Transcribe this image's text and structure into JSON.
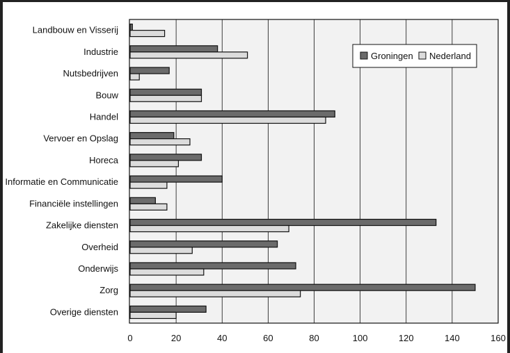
{
  "chart_data": {
    "type": "bar",
    "orientation": "horizontal",
    "categories": [
      "Landbouw en Visserij",
      "Industrie",
      "Nutsbedrijven",
      "Bouw",
      "Handel",
      "Vervoer en Opslag",
      "Horeca",
      "Informatie en Communicatie",
      "Financiële instellingen",
      "Zakelijke diensten",
      "Overheid",
      "Onderwijs",
      "Zorg",
      "Overige diensten"
    ],
    "series": [
      {
        "name": "Groningen",
        "color": "#6b6b6b",
        "values": [
          1,
          38,
          17,
          31,
          89,
          19,
          31,
          40,
          11,
          133,
          64,
          72,
          150,
          33
        ]
      },
      {
        "name": "Nederland",
        "color": "#dcdcdc",
        "values": [
          15,
          51,
          4,
          31,
          85,
          26,
          21,
          16,
          16,
          69,
          27,
          32,
          74,
          20
        ]
      }
    ],
    "xlim": [
      0,
      160
    ],
    "xticks": [
      0,
      20,
      40,
      60,
      80,
      100,
      120,
      140,
      160
    ],
    "grid": "vertical",
    "legend_position": "top-right",
    "title": "",
    "xlabel": "",
    "ylabel": "",
    "plot_background": "#f2f2f2"
  }
}
